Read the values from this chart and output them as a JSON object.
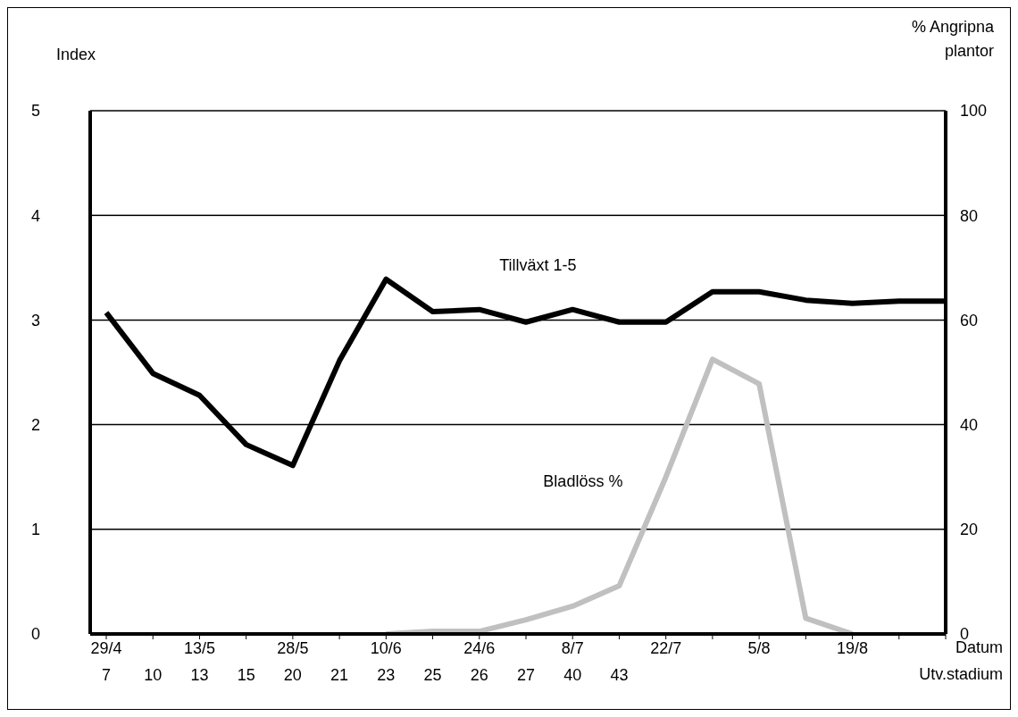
{
  "chart_data": {
    "type": "line",
    "ylabel": "Index",
    "y2label": "% Angripna plantor",
    "xlabel": "Datum",
    "annotations": [
      "Utv.stadium"
    ],
    "categories": [
      "29/4\n7",
      "\n10",
      "13/5\n13",
      "\n15",
      "28/5\n20",
      "\n21",
      "10/6\n23",
      "\n25",
      "24/6\n26",
      "\n27",
      "8/7\n40",
      "\n43",
      "22/7",
      null,
      "5/8",
      null,
      "19/8",
      null,
      null
    ],
    "series": [
      {
        "name": "Tillväxt 1-5",
        "color": "#000000",
        "values": [
          3.07,
          2.49,
          2.28,
          1.81,
          1.61,
          2.61,
          3.39,
          3.08,
          3.1,
          2.98,
          3.1,
          2.98,
          2.98,
          3.27,
          3.27,
          3.19,
          3.16,
          3.18,
          3.18
        ]
      },
      {
        "name": "Bladlöss %",
        "color": "#c0c0c0",
        "axis": "y2",
        "values": [
          null,
          null,
          null,
          null,
          null,
          null,
          0,
          0.5,
          0.5,
          2.7,
          5.3,
          9.2,
          30,
          52.5,
          47.8,
          3,
          0,
          null,
          null
        ]
      }
    ],
    "ylim": [
      0,
      5
    ],
    "yticks": [
      0,
      1,
      2,
      3,
      4,
      5
    ],
    "y2lim": [
      0,
      100
    ],
    "y2ticks": [
      0,
      20,
      40,
      60,
      80,
      100
    ],
    "grid": "y",
    "marker": "none",
    "line_style": "solid"
  }
}
